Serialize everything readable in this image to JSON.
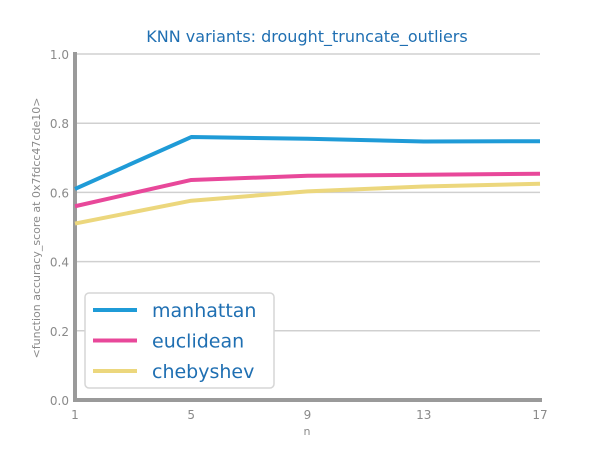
{
  "chart_data": {
    "type": "line",
    "title": "KNN variants: drought_truncate_outliers",
    "xlabel": "n",
    "ylabel": "<function accuracy_score at 0x7fdcc47cde10>",
    "x": [
      1,
      5,
      9,
      13,
      17
    ],
    "xticks": [
      "1",
      "5",
      "9",
      "13",
      "17"
    ],
    "xlim": [
      1,
      17
    ],
    "ylim": [
      0.0,
      1.0
    ],
    "yticks": [
      "0.0",
      "0.2",
      "0.4",
      "0.6",
      "0.8",
      "1.0"
    ],
    "grid": "horizontal",
    "legend_position": "lower-left",
    "series": [
      {
        "name": "manhattan",
        "color": "#1f9bd7",
        "values": [
          0.61,
          0.76,
          0.755,
          0.747,
          0.748
        ]
      },
      {
        "name": "euclidean",
        "color": "#e8489a",
        "values": [
          0.56,
          0.636,
          0.648,
          0.651,
          0.654
        ]
      },
      {
        "name": "chebyshev",
        "color": "#ecd77d",
        "values": [
          0.51,
          0.576,
          0.603,
          0.617,
          0.625
        ]
      }
    ]
  }
}
